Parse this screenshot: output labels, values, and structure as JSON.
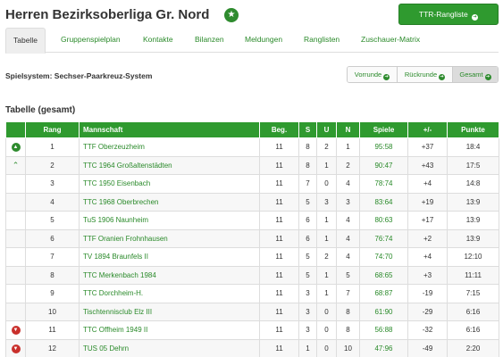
{
  "header": {
    "title": "Herren Bezirksoberliga Gr. Nord",
    "star_icon": "star-icon",
    "ttr_button_label": "TTR-Rangliste"
  },
  "tabs": [
    {
      "label": "Tabelle",
      "active": true
    },
    {
      "label": "Gruppenspielplan",
      "active": false
    },
    {
      "label": "Kontakte",
      "active": false
    },
    {
      "label": "Bilanzen",
      "active": false
    },
    {
      "label": "Meldungen",
      "active": false
    },
    {
      "label": "Ranglisten",
      "active": false
    },
    {
      "label": "Zuschauer-Matrix",
      "active": false
    }
  ],
  "system_label": "Spielsystem: Sechser-Paarkreuz-System",
  "view_buttons": [
    {
      "label": "Vorrunde",
      "active": false
    },
    {
      "label": "Rückrunde",
      "active": false
    },
    {
      "label": "Gesamt",
      "active": true
    }
  ],
  "section_title": "Tabelle (gesamt)",
  "table": {
    "columns": [
      "",
      "Rang",
      "Mannschaft",
      "Beg.",
      "S",
      "U",
      "N",
      "Spiele",
      "+/-",
      "Punkte"
    ],
    "rows": [
      {
        "move": "up-circle",
        "rang": "1",
        "team": "TTF Oberzeuzheim",
        "beg": "11",
        "s": "8",
        "u": "2",
        "n": "1",
        "spiele": "95:58",
        "diff": "+37",
        "punkte": "18:4"
      },
      {
        "move": "up-chevron",
        "rang": "2",
        "team": "TTC 1964 Großaltenstädten",
        "beg": "11",
        "s": "8",
        "u": "1",
        "n": "2",
        "spiele": "90:47",
        "diff": "+43",
        "punkte": "17:5"
      },
      {
        "move": "",
        "rang": "3",
        "team": "TTC 1950 Eisenbach",
        "beg": "11",
        "s": "7",
        "u": "0",
        "n": "4",
        "spiele": "78:74",
        "diff": "+4",
        "punkte": "14:8"
      },
      {
        "move": "",
        "rang": "4",
        "team": "TTC 1968 Oberbrechen",
        "beg": "11",
        "s": "5",
        "u": "3",
        "n": "3",
        "spiele": "83:64",
        "diff": "+19",
        "punkte": "13:9"
      },
      {
        "move": "",
        "rang": "5",
        "team": "TuS 1906 Naunheim",
        "beg": "11",
        "s": "6",
        "u": "1",
        "n": "4",
        "spiele": "80:63",
        "diff": "+17",
        "punkte": "13:9"
      },
      {
        "move": "",
        "rang": "6",
        "team": "TTF Oranien Frohnhausen",
        "beg": "11",
        "s": "6",
        "u": "1",
        "n": "4",
        "spiele": "76:74",
        "diff": "+2",
        "punkte": "13:9"
      },
      {
        "move": "",
        "rang": "7",
        "team": "TV 1894 Braunfels II",
        "beg": "11",
        "s": "5",
        "u": "2",
        "n": "4",
        "spiele": "74:70",
        "diff": "+4",
        "punkte": "12:10"
      },
      {
        "move": "",
        "rang": "8",
        "team": "TTC Merkenbach 1984",
        "beg": "11",
        "s": "5",
        "u": "1",
        "n": "5",
        "spiele": "68:65",
        "diff": "+3",
        "punkte": "11:11"
      },
      {
        "move": "",
        "rang": "9",
        "team": "TTC Dorchheim-H.",
        "beg": "11",
        "s": "3",
        "u": "1",
        "n": "7",
        "spiele": "68:87",
        "diff": "-19",
        "punkte": "7:15"
      },
      {
        "move": "",
        "rang": "10",
        "team": "Tischtennisclub Elz III",
        "beg": "11",
        "s": "3",
        "u": "0",
        "n": "8",
        "spiele": "61:90",
        "diff": "-29",
        "punkte": "6:16"
      },
      {
        "move": "down-circle",
        "rang": "11",
        "team": "TTC Offheim 1949 II",
        "beg": "11",
        "s": "3",
        "u": "0",
        "n": "8",
        "spiele": "56:88",
        "diff": "-32",
        "punkte": "6:16"
      },
      {
        "move": "down-circle",
        "rang": "12",
        "team": "TUS 05 Dehrn",
        "beg": "11",
        "s": "1",
        "u": "0",
        "n": "10",
        "spiele": "47:96",
        "diff": "-49",
        "punkte": "2:20"
      }
    ]
  }
}
